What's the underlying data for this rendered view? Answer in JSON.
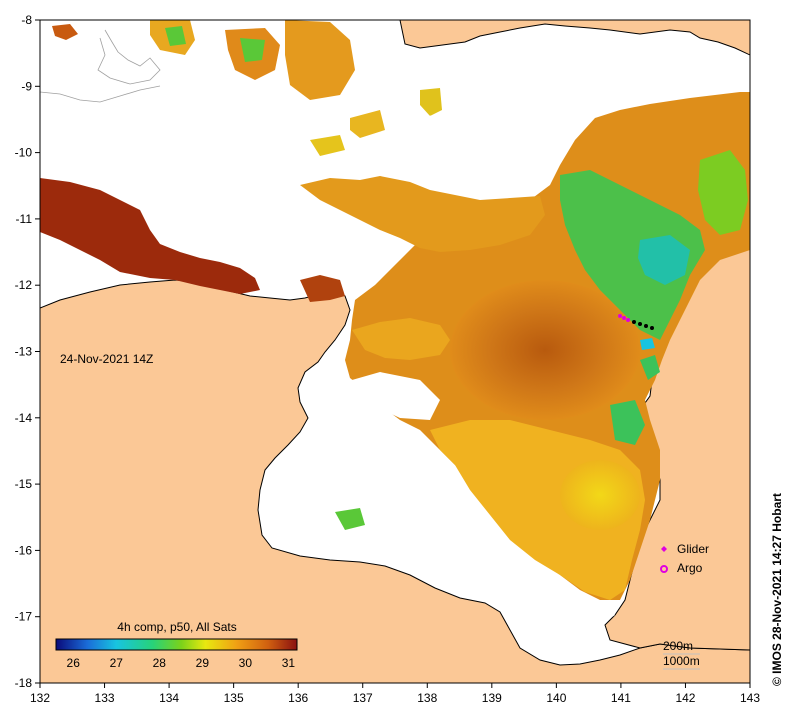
{
  "map": {
    "date_label": "24-Nov-2021 14Z",
    "credit": "©  IMOS 28-Nov-2021 14:27 Hobart",
    "colors": {
      "land": "#fbc896",
      "coast": "#000000",
      "background": "#ffffff"
    }
  },
  "axes": {
    "lon_ticks": [
      "132",
      "133",
      "134",
      "135",
      "136",
      "137",
      "138",
      "139",
      "140",
      "141",
      "142",
      "143"
    ],
    "lat_ticks": [
      "-8",
      "-9",
      "-10",
      "-11",
      "-12",
      "-13",
      "-14",
      "-15",
      "-16",
      "-17",
      "-18"
    ],
    "lon_range": [
      132,
      143
    ],
    "lat_range": [
      -18,
      -8
    ]
  },
  "colorbar": {
    "title": "4h comp, p50, All Sats",
    "tick_labels": [
      "26",
      "27",
      "28",
      "29",
      "30",
      "31"
    ],
    "range": [
      25.6,
      31.2
    ],
    "stops": [
      "#0a0a7a",
      "#1a6cd8",
      "#18c4e0",
      "#27d27a",
      "#7bd21a",
      "#e8e810",
      "#f0a014",
      "#d06010",
      "#8a1010"
    ]
  },
  "legend": {
    "glider_label": "Glider",
    "argo_label": "Argo",
    "glider_color": "#e000e0",
    "argo_color": "#e000e0"
  },
  "scale": {
    "contour_a": "200m",
    "contour_b": "1000m"
  }
}
